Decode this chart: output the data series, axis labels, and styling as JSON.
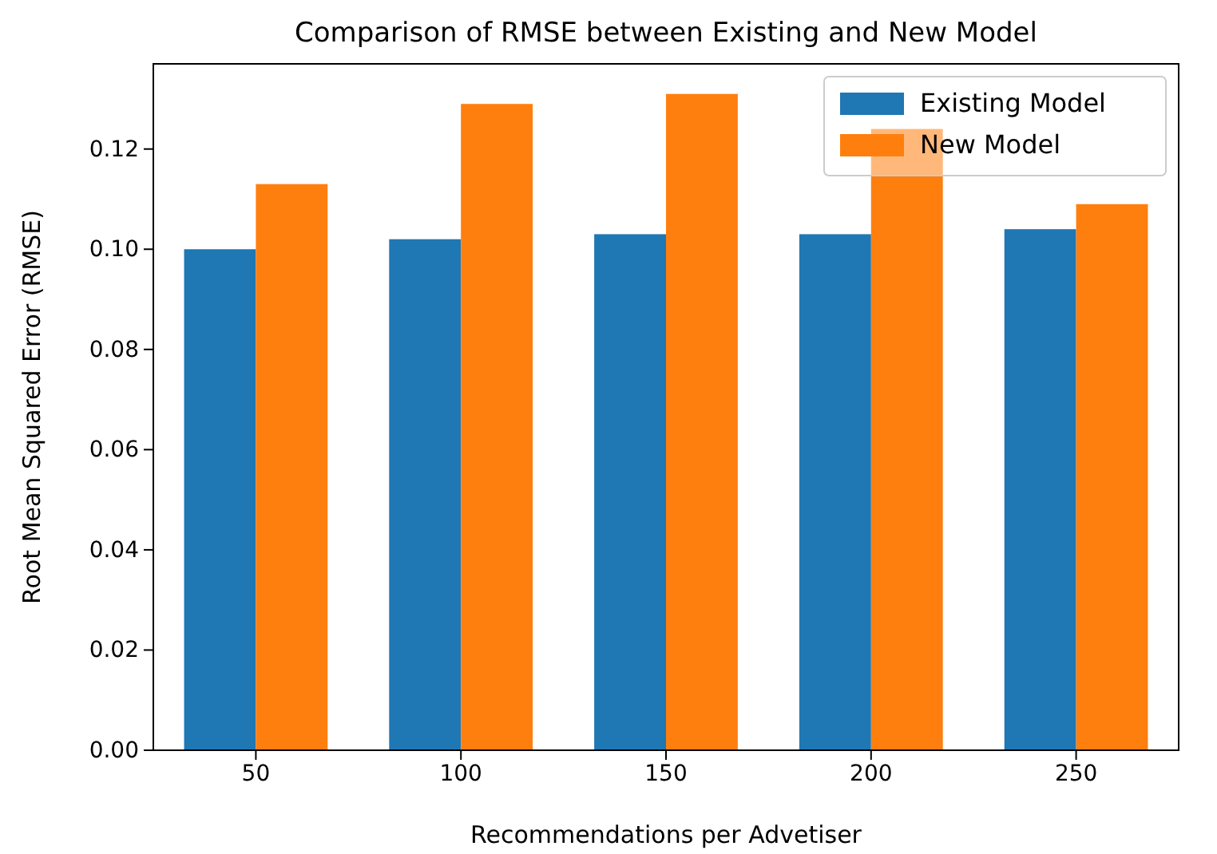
{
  "chart_data": {
    "type": "bar",
    "title": "Comparison of RMSE between Existing and New Model",
    "xlabel": "Recommendations per Advetiser",
    "ylabel": "Root Mean Squared Error (RMSE)",
    "categories": [
      "50",
      "100",
      "150",
      "200",
      "250"
    ],
    "series": [
      {
        "name": "Existing Model",
        "color": "#1f77b4",
        "values": [
          0.1,
          0.102,
          0.103,
          0.103,
          0.104
        ]
      },
      {
        "name": "New Model",
        "color": "#ff7f0e",
        "values": [
          0.113,
          0.129,
          0.131,
          0.124,
          0.109
        ]
      }
    ],
    "ylim": [
      0,
      0.137
    ],
    "yticks": [
      {
        "value": 0,
        "label": "0.00"
      },
      {
        "value": 0.02,
        "label": "0.02"
      },
      {
        "value": 0.04,
        "label": "0.04"
      },
      {
        "value": 0.06,
        "label": "0.06"
      },
      {
        "value": 0.08,
        "label": "0.08"
      },
      {
        "value": 0.1,
        "label": "0.10"
      },
      {
        "value": 0.12,
        "label": "0.12"
      }
    ],
    "legend": "top right",
    "grid": false
  }
}
